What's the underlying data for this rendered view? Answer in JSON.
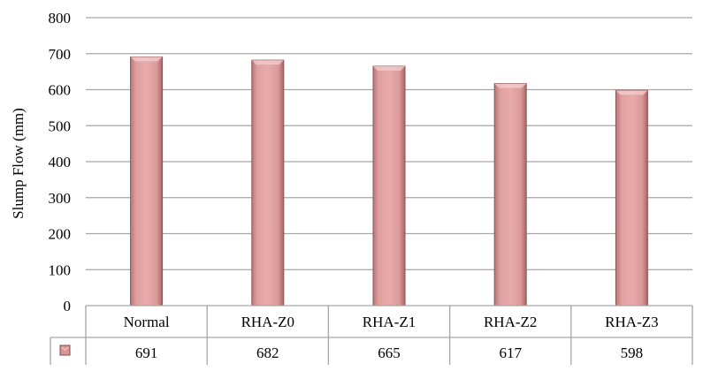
{
  "chart_data": {
    "type": "bar",
    "title": "",
    "xlabel": "",
    "ylabel": "Slump Flow (mm)",
    "ylim": [
      0,
      800
    ],
    "yticks": [
      0,
      100,
      200,
      300,
      400,
      500,
      600,
      700,
      800
    ],
    "categories": [
      "Normal",
      "RHA-Z0",
      "RHA-Z1",
      "RHA-Z2",
      "RHA-Z3"
    ],
    "series": [
      {
        "values": [
          691,
          682,
          665,
          617,
          598
        ],
        "color": "#e3a4a4",
        "edge_color": "#8c5454"
      }
    ],
    "data_table": true,
    "grid": true,
    "legend": "data-table-left"
  }
}
